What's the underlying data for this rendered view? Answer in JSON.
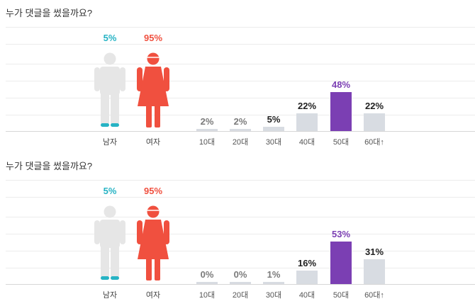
{
  "colors": {
    "male": "#26b3c4",
    "female": "#f0503f",
    "figure_grey": "#e6e6e6",
    "bar_default": "#d8dce2",
    "bar_highlight": "#7b3fb3",
    "text_dark": "#222222",
    "text_grey": "#7a7a7a"
  },
  "chart_data": [
    {
      "type": "bar",
      "title": "누가 댓글을 썼을까요?",
      "gender": [
        {
          "name": "남자",
          "value": 5,
          "label": "5%"
        },
        {
          "name": "여자",
          "value": 95,
          "label": "95%"
        }
      ],
      "categories": [
        "10대",
        "20대",
        "30대",
        "40대",
        "50대",
        "60대↑"
      ],
      "values": [
        2,
        2,
        5,
        22,
        48,
        22
      ],
      "value_labels": [
        "2%",
        "2%",
        "5%",
        "22%",
        "48%",
        "22%"
      ],
      "highlight_index": 4,
      "grid": true
    },
    {
      "type": "bar",
      "title": "누가 댓글을 썼을까요?",
      "gender": [
        {
          "name": "남자",
          "value": 5,
          "label": "5%"
        },
        {
          "name": "여자",
          "value": 95,
          "label": "95%"
        }
      ],
      "categories": [
        "10대",
        "20대",
        "30대",
        "40대",
        "50대",
        "60대↑"
      ],
      "values": [
        0,
        0,
        1,
        16,
        53,
        31
      ],
      "value_labels": [
        "0%",
        "0%",
        "1%",
        "16%",
        "53%",
        "31%"
      ],
      "highlight_index": 4,
      "grid": true
    }
  ]
}
